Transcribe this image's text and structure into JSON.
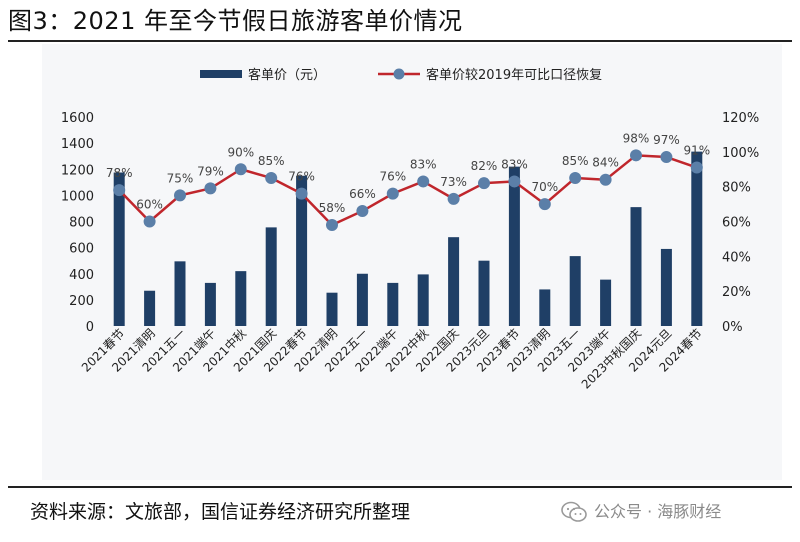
{
  "page": {
    "title": "图3：2021 年至今节假日旅游客单价情况",
    "source": "资料来源：文旅部，国信证券经济研究所整理",
    "watermark": "公众号 · 海豚财经",
    "watermark_icon": "wechat-icon"
  },
  "colors": {
    "bar": "#1f3f66",
    "line": "#c0262c",
    "marker": "#5b7fa8",
    "grid_bg": "#f6f7f9"
  },
  "chart_data": {
    "type": "bar",
    "categories": [
      "2021春节",
      "2021清明",
      "2021五一",
      "2021端午",
      "2021中秋",
      "2021国庆",
      "2022春节",
      "2022清明",
      "2022五一",
      "2022端午",
      "2022中秋",
      "2022国庆",
      "2023元旦",
      "2023春节",
      "2023清明",
      "2023五一",
      "2023端午",
      "2023中秋国庆",
      "2024元旦",
      "2024春节"
    ],
    "series": [
      {
        "name": "客单价（元）",
        "type": "bar",
        "axis": "left",
        "values": [
          1175,
          270,
          495,
          330,
          420,
          755,
          1150,
          255,
          400,
          330,
          395,
          680,
          500,
          1220,
          280,
          535,
          355,
          910,
          590,
          1335
        ]
      },
      {
        "name": "客单价较2019年可比口径恢复",
        "type": "line",
        "axis": "right",
        "values": [
          78,
          60,
          75,
          79,
          90,
          85,
          76,
          58,
          66,
          76,
          83,
          73,
          82,
          83,
          70,
          85,
          84,
          98,
          97,
          91
        ],
        "labels": [
          "78%",
          "60%",
          "75%",
          "79%",
          "90%",
          "85%",
          "76%",
          "58%",
          "66%",
          "76%",
          "83%",
          "73%",
          "82%",
          "83%",
          "70%",
          "85%",
          "84%",
          "98%",
          "97%",
          "91%"
        ]
      }
    ],
    "y_left": {
      "min": 0,
      "max": 1600,
      "ticks": [
        "0",
        "200",
        "400",
        "600",
        "800",
        "1000",
        "1200",
        "1400",
        "1600"
      ]
    },
    "y_right": {
      "min": 0,
      "max": 120,
      "ticks": [
        "0%",
        "20%",
        "40%",
        "60%",
        "80%",
        "100%",
        "120%"
      ]
    },
    "legend_position": "top",
    "grid": false
  }
}
